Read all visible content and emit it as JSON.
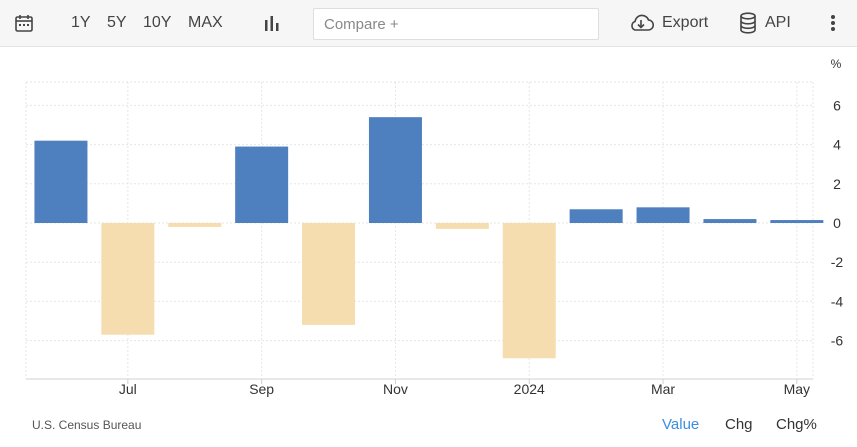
{
  "toolbar": {
    "ranges": [
      "1Y",
      "5Y",
      "10Y",
      "MAX"
    ],
    "compare_placeholder": "Compare +",
    "export_label": "Export",
    "api_label": "API"
  },
  "chart_data": {
    "type": "bar",
    "title": "",
    "xlabel": "",
    "ylabel": "%",
    "categories": [
      "2023-06",
      "2023-07",
      "2023-08",
      "2023-09",
      "2023-10",
      "2023-11",
      "2023-12",
      "2024-01",
      "2024-02",
      "2024-03",
      "2024-04",
      "2024-05"
    ],
    "values": [
      4.2,
      -5.7,
      -0.2,
      3.9,
      -5.2,
      5.4,
      -0.3,
      -6.9,
      0.7,
      0.8,
      0.2,
      0.15
    ],
    "x_tick_labels": [
      {
        "category": "2023-07",
        "label": "Jul"
      },
      {
        "category": "2023-09",
        "label": "Sep"
      },
      {
        "category": "2023-11",
        "label": "Nov"
      },
      {
        "category": "2024-01",
        "label": "2024"
      },
      {
        "category": "2024-03",
        "label": "Mar"
      },
      {
        "category": "2024-05",
        "label": "May"
      }
    ],
    "y_ticks": [
      6,
      4,
      2,
      0,
      -2,
      -4,
      -6
    ],
    "ylim": [
      -8,
      7
    ],
    "grid": true,
    "colors": {
      "positive": "#4e7fbe",
      "negative": "#f5ddb0"
    }
  },
  "footer": {
    "source": "U.S. Census Bureau",
    "tabs": [
      "Value",
      "Chg",
      "Chg%"
    ],
    "active_tab": "Value"
  }
}
